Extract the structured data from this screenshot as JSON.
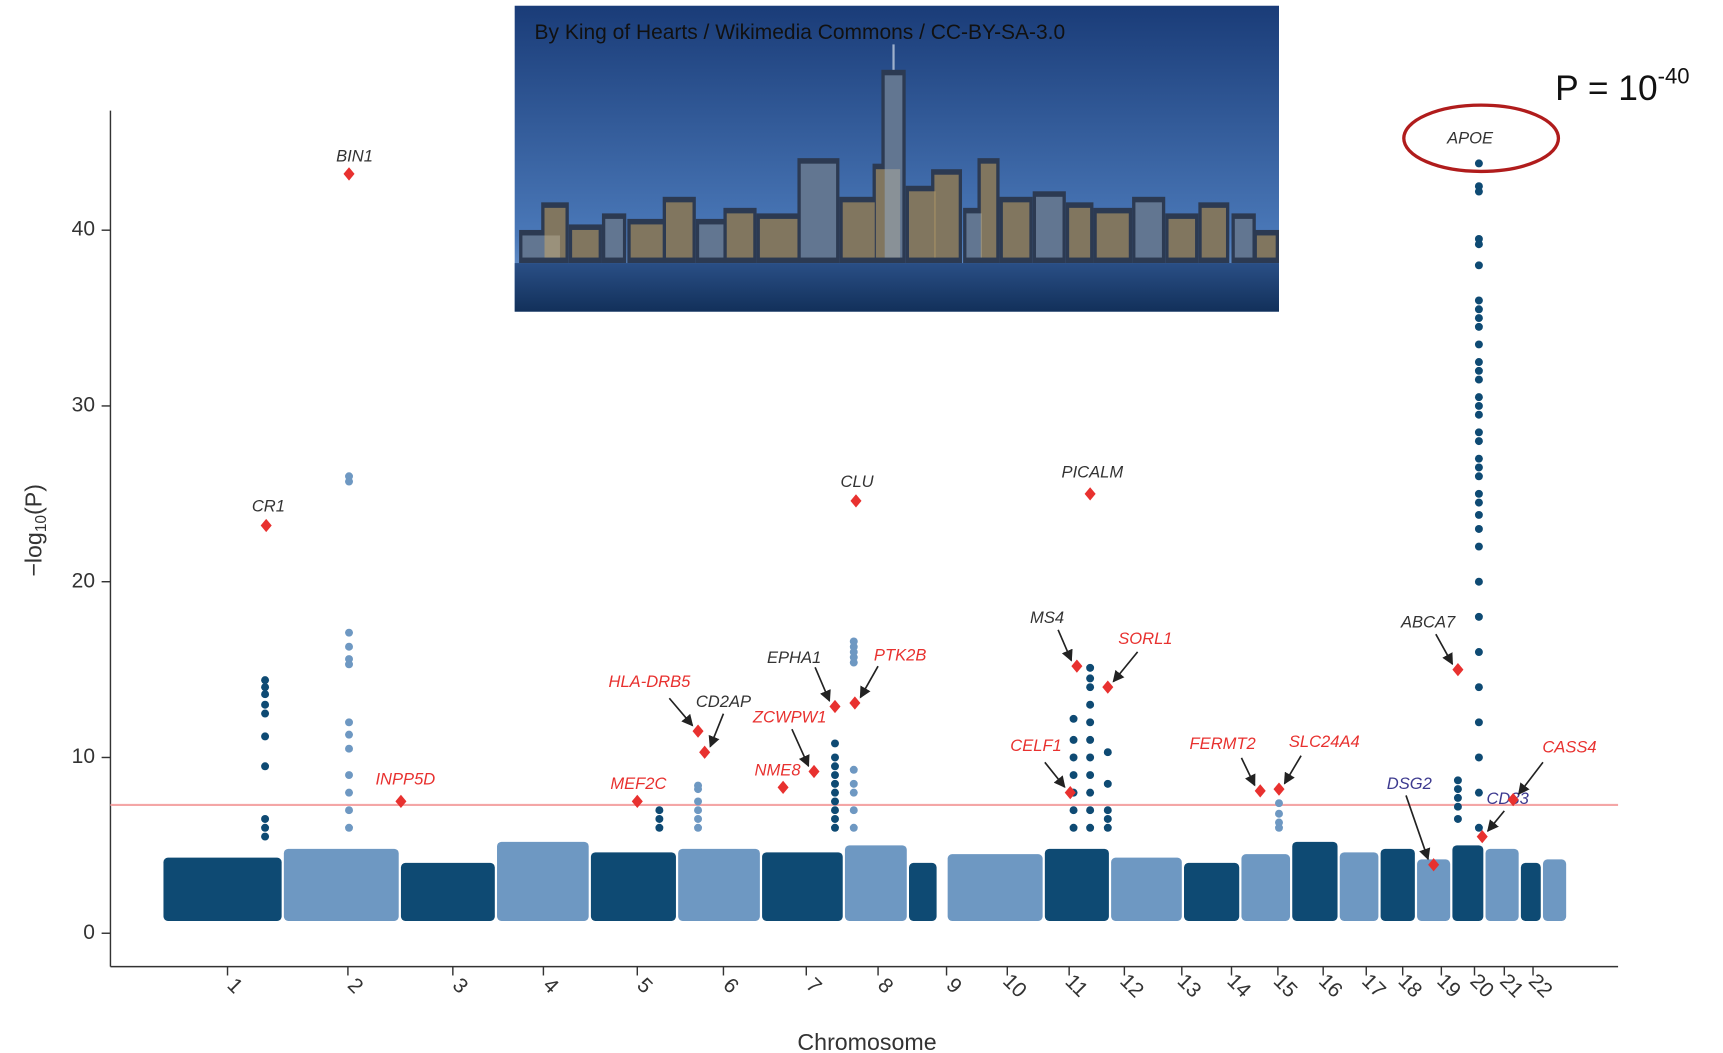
{
  "chart_data": {
    "type": "manhattan",
    "photo_caption": "By King of Hearts / Wikimedia Commons / CC-BY-SA-3.0",
    "callout": {
      "base": "P = 10",
      "exponent": "-40"
    },
    "xlabel": "Chromosome",
    "ylabel": {
      "prefix": "−log",
      "subscript": "10",
      "suffix": "(P)"
    },
    "xlim": [
      0,
      1365
    ],
    "ylim": [
      -1.9,
      46.8
    ],
    "yticks": [
      0,
      10,
      20,
      30,
      40
    ],
    "xticks": [
      {
        "value": 106,
        "label": "1"
      },
      {
        "value": 215,
        "label": "2"
      },
      {
        "value": 310,
        "label": "3"
      },
      {
        "value": 392,
        "label": "4"
      },
      {
        "value": 477,
        "label": "5"
      },
      {
        "value": 555,
        "label": "6"
      },
      {
        "value": 630,
        "label": "7"
      },
      {
        "value": 695,
        "label": "8"
      },
      {
        "value": 757,
        "label": "9"
      },
      {
        "value": 812,
        "label": "10"
      },
      {
        "value": 868,
        "label": "11"
      },
      {
        "value": 918,
        "label": "12"
      },
      {
        "value": 970,
        "label": "13"
      },
      {
        "value": 1015,
        "label": "14"
      },
      {
        "value": 1057,
        "label": "15"
      },
      {
        "value": 1098,
        "label": "16"
      },
      {
        "value": 1137,
        "label": "17"
      },
      {
        "value": 1170,
        "label": "18"
      },
      {
        "value": 1205,
        "label": "19"
      },
      {
        "value": 1235,
        "label": "20"
      },
      {
        "value": 1262,
        "label": "21"
      },
      {
        "value": 1288,
        "label": "22"
      }
    ],
    "threshold": 7.3,
    "threshold_color": "#f4a6a6",
    "blocks": [
      {
        "range": [
          48,
          157
        ],
        "band": [
          0.7,
          4.3
        ],
        "color": "#0e4a73"
      },
      {
        "range": [
          157,
          263
        ],
        "band": [
          0.7,
          4.8
        ],
        "color": "#6e98c2"
      },
      {
        "range": [
          263,
          350
        ],
        "band": [
          0.7,
          4.0
        ],
        "color": "#0e4a73"
      },
      {
        "range": [
          350,
          435
        ],
        "band": [
          0.7,
          5.2
        ],
        "color": "#6e98c2"
      },
      {
        "range": [
          435,
          514
        ],
        "band": [
          0.7,
          4.6
        ],
        "color": "#0e4a73"
      },
      {
        "range": [
          514,
          590
        ],
        "band": [
          0.7,
          4.8
        ],
        "color": "#6e98c2"
      },
      {
        "range": [
          590,
          665
        ],
        "band": [
          0.7,
          4.6
        ],
        "color": "#0e4a73"
      },
      {
        "range": [
          665,
          723
        ],
        "band": [
          0.7,
          5.0
        ],
        "color": "#6e98c2"
      },
      {
        "range": [
          723,
          750
        ],
        "band": [
          0.7,
          4.0
        ],
        "color": "#0e4a73"
      },
      {
        "range": [
          758,
          846
        ],
        "band": [
          0.7,
          4.5
        ],
        "color": "#6e98c2"
      },
      {
        "range": [
          846,
          906
        ],
        "band": [
          0.7,
          4.8
        ],
        "color": "#0e4a73"
      },
      {
        "range": [
          906,
          972
        ],
        "band": [
          0.7,
          4.3
        ],
        "color": "#6e98c2"
      },
      {
        "range": [
          972,
          1024
        ],
        "band": [
          0.7,
          4.0
        ],
        "color": "#0e4a73"
      },
      {
        "range": [
          1024,
          1070
        ],
        "band": [
          0.7,
          4.5
        ],
        "color": "#6e98c2"
      },
      {
        "range": [
          1070,
          1113
        ],
        "band": [
          0.7,
          5.2
        ],
        "color": "#0e4a73"
      },
      {
        "range": [
          1113,
          1150
        ],
        "band": [
          0.7,
          4.6
        ],
        "color": "#6e98c2"
      },
      {
        "range": [
          1150,
          1183
        ],
        "band": [
          0.7,
          4.8
        ],
        "color": "#0e4a73"
      },
      {
        "range": [
          1183,
          1215
        ],
        "band": [
          0.7,
          4.2
        ],
        "color": "#6e98c2"
      },
      {
        "range": [
          1215,
          1245
        ],
        "band": [
          0.7,
          5.0
        ],
        "color": "#0e4a73"
      },
      {
        "range": [
          1245,
          1277
        ],
        "band": [
          0.7,
          4.8
        ],
        "color": "#6e98c2"
      },
      {
        "range": [
          1277,
          1297
        ],
        "band": [
          0.7,
          4.0
        ],
        "color": "#0e4a73"
      },
      {
        "range": [
          1297,
          1320
        ],
        "band": [
          0.7,
          4.2
        ],
        "color": "#6e98c2"
      }
    ],
    "peaks": [
      {
        "x": 140,
        "color": "#0e4a73",
        "values": [
          14.4,
          14.0,
          13.6,
          13.0,
          12.5,
          11.2,
          9.5,
          6.5,
          6.0,
          5.5
        ]
      },
      {
        "x": 216,
        "color": "#6e98c2",
        "values": [
          26.0,
          25.7,
          17.1,
          16.3,
          15.6,
          15.3,
          12.0,
          11.3,
          10.5,
          9.0,
          8.0,
          7.0,
          6.0
        ]
      },
      {
        "x": 497,
        "color": "#0e4a73",
        "values": [
          7.0,
          6.5,
          6.0
        ]
      },
      {
        "x": 532,
        "color": "#6e98c2",
        "values": [
          8.4,
          8.2,
          7.5,
          7.0,
          6.5,
          6.0
        ]
      },
      {
        "x": 656,
        "color": "#0e4a73",
        "values": [
          10.8,
          10.0,
          9.5,
          9.0,
          8.5,
          8.0,
          7.5,
          7.0,
          6.5,
          6.0
        ]
      },
      {
        "x": 673,
        "color": "#6e98c2",
        "values": [
          16.6,
          16.3,
          16.0,
          15.7,
          15.4,
          9.3,
          8.5,
          8.0,
          7.0,
          6.0
        ]
      },
      {
        "x": 872,
        "color": "#0e4a73",
        "values": [
          12.2,
          11.0,
          10.0,
          9.0,
          8.0,
          7.0,
          6.0
        ]
      },
      {
        "x": 887,
        "color": "#0e4a73",
        "values": [
          15.1,
          14.5,
          14.0,
          13.0,
          12.0,
          11.0,
          10.0,
          9.0,
          8.0,
          7.0,
          6.0
        ]
      },
      {
        "x": 903,
        "color": "#0e4a73",
        "values": [
          10.3,
          8.5,
          7.0,
          6.5,
          6.0
        ]
      },
      {
        "x": 1058,
        "color": "#6e98c2",
        "values": [
          7.4,
          6.8,
          6.3,
          6.0
        ]
      },
      {
        "x": 1220,
        "color": "#0e4a73",
        "values": [
          8.7,
          8.2,
          7.7,
          7.2,
          6.5
        ]
      },
      {
        "x": 1239,
        "color": "#0e4a73",
        "values": [
          43.8,
          42.5,
          42.2,
          39.5,
          39.2,
          38.0,
          36.0,
          35.5,
          35.0,
          34.5,
          33.5,
          32.5,
          32.0,
          31.5,
          30.5,
          30.0,
          29.5,
          28.5,
          28.0,
          27.0,
          26.5,
          26.0,
          25.0,
          24.5,
          23.8,
          23.0,
          22.0,
          20.0,
          18.0,
          16.0,
          14.0,
          12.0,
          10.0,
          8.0,
          6.0
        ]
      }
    ],
    "genes": [
      {
        "label": "BIN1",
        "x": 216,
        "y": 43.2,
        "color": "#333333"
      },
      {
        "label": "CR1",
        "x": 141,
        "y": 23.2,
        "color": "#333333"
      },
      {
        "label": "INPP5D",
        "x": 263,
        "y": 7.5,
        "color": "#e8312f"
      },
      {
        "label": "MEF2C",
        "x": 477,
        "y": 7.5,
        "color": "#e8312f"
      },
      {
        "label": "HLA-DRB5",
        "x": 532,
        "y": 11.5,
        "color": "#e8312f"
      },
      {
        "label": "CD2AP",
        "x": 538,
        "y": 10.3,
        "color": "#333333"
      },
      {
        "label": "ZCWPW1",
        "x": 637,
        "y": 9.2,
        "color": "#e8312f"
      },
      {
        "label": "NME8",
        "x": 609,
        "y": 8.3,
        "color": "#e8312f"
      },
      {
        "label": "EPHA1",
        "x": 656,
        "y": 12.9,
        "color": "#333333"
      },
      {
        "label": "PTK2B",
        "x": 674,
        "y": 13.1,
        "color": "#e8312f"
      },
      {
        "label": "CLU",
        "x": 675,
        "y": 24.6,
        "color": "#333333"
      },
      {
        "label": "CELF1",
        "x": 869,
        "y": 8.0,
        "color": "#e8312f"
      },
      {
        "label": "MS4",
        "x": 875,
        "y": 15.2,
        "color": "#333333"
      },
      {
        "label": "SORL1",
        "x": 903,
        "y": 14.0,
        "color": "#e8312f"
      },
      {
        "label": "PICALM",
        "x": 887,
        "y": 25.0,
        "color": "#333333"
      },
      {
        "label": "FERMT2",
        "x": 1041,
        "y": 8.1,
        "color": "#e8312f"
      },
      {
        "label": "SLC24A4",
        "x": 1058,
        "y": 8.2,
        "color": "#e8312f"
      },
      {
        "label": "ABCA7",
        "x": 1220,
        "y": 15.0,
        "color": "#333333"
      },
      {
        "label": "DSG2",
        "x": 1198,
        "y": 3.9,
        "color": "#3d3a8f"
      },
      {
        "label": "CD33",
        "x": 1242,
        "y": 5.5,
        "color": "#3d3a8f"
      },
      {
        "label": "CASS4",
        "x": 1270,
        "y": 7.6,
        "color": "#e8312f"
      },
      {
        "label": "APOE",
        "color": "#333333"
      }
    ],
    "marker_color": "#e8312f",
    "circle_color": "#b01c1c"
  }
}
